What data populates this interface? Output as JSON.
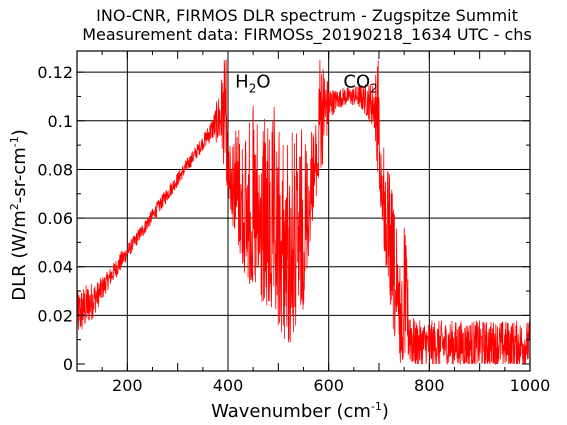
{
  "chart_data": {
    "type": "line",
    "title_line1": "INO-CNR, FIRMOS DLR spectrum - Zugspitze Summit",
    "title_line2": "Measurement data: FIRMOSs_20190218_1634 UTC - chs",
    "xlabel": "Wavenumber (cm",
    "xlabel_sup": "-1",
    "xlabel_tail": ")",
    "ylabel": "DLR (W/m",
    "ylabel_sup1": "2",
    "ylabel_mid": "-sr-cm",
    "ylabel_sup2": "-1",
    "ylabel_tail": ")",
    "xlim": [
      100,
      1000
    ],
    "ylim": [
      0,
      0.125
    ],
    "x_ticks": [
      200,
      400,
      600,
      800,
      1000
    ],
    "x_tick_labels": [
      "200",
      "400",
      "600",
      "800",
      "1000"
    ],
    "y_ticks": [
      0,
      0.02,
      0.04,
      0.06,
      0.08,
      0.1,
      0.12
    ],
    "y_tick_labels": [
      "0",
      "0.02",
      "0.04",
      "0.06",
      "0.08",
      "0.1",
      "0.12"
    ],
    "grid": true,
    "line_color": "#ff0000",
    "annotations": [
      {
        "text": "H",
        "sub": "2",
        "tail": "O",
        "x": 450,
        "y": 0.1195
      },
      {
        "text": "CO",
        "sub": "2",
        "tail": "",
        "x": 665,
        "y": 0.1195
      }
    ],
    "series": [
      {
        "x": [
          100,
          110,
          120,
          130,
          140,
          150,
          160,
          170,
          180,
          190,
          200,
          210,
          220,
          230,
          240,
          250,
          260,
          270,
          280,
          290,
          300,
          310,
          320,
          330,
          340,
          350,
          360,
          370,
          380,
          390,
          400,
          410,
          420,
          430,
          440,
          450,
          460,
          470,
          480,
          490,
          500,
          510,
          520,
          530,
          540,
          550,
          560,
          570,
          580,
          590,
          600,
          610,
          620,
          630,
          640,
          650,
          660,
          670,
          680,
          690,
          700,
          710,
          720,
          730,
          740,
          750,
          760,
          770,
          780,
          790,
          800,
          810,
          820,
          830,
          840,
          850,
          860,
          870,
          880,
          890,
          900,
          910,
          920,
          930,
          940,
          950,
          960,
          970,
          980,
          990,
          1000
        ],
        "y": [
          0.02,
          0.022,
          0.024,
          0.026,
          0.028,
          0.031,
          0.034,
          0.037,
          0.04,
          0.043,
          0.046,
          0.049,
          0.052,
          0.055,
          0.058,
          0.061,
          0.064,
          0.067,
          0.07,
          0.073,
          0.076,
          0.079,
          0.082,
          0.085,
          0.088,
          0.091,
          0.094,
          0.097,
          0.1,
          0.103,
          0.105,
          0.106,
          0.107,
          0.107,
          0.108,
          0.108,
          0.108,
          0.107,
          0.107,
          0.107,
          0.106,
          0.105,
          0.105,
          0.104,
          0.104,
          0.103,
          0.103,
          0.103,
          0.103,
          0.104,
          0.106,
          0.108,
          0.109,
          0.11,
          0.11,
          0.11,
          0.11,
          0.109,
          0.108,
          0.106,
          0.103,
          0.095,
          0.085,
          0.07,
          0.05,
          0.03,
          0.014,
          0.008,
          0.008,
          0.008,
          0.008,
          0.008,
          0.008,
          0.008,
          0.008,
          0.008,
          0.008,
          0.008,
          0.008,
          0.008,
          0.008,
          0.008,
          0.008,
          0.008,
          0.008,
          0.008,
          0.008,
          0.008,
          0.008,
          0.008,
          0.008
        ],
        "noise_amplitude": [
          0.01,
          0.01,
          0.009,
          0.008,
          0.006,
          0.005,
          0.004,
          0.004,
          0.004,
          0.004,
          0.003,
          0.003,
          0.003,
          0.003,
          0.003,
          0.003,
          0.003,
          0.003,
          0.003,
          0.003,
          0.003,
          0.003,
          0.003,
          0.003,
          0.003,
          0.003,
          0.004,
          0.005,
          0.01,
          0.02,
          0.035,
          0.05,
          0.06,
          0.07,
          0.075,
          0.08,
          0.085,
          0.085,
          0.09,
          0.09,
          0.095,
          0.095,
          0.1,
          0.095,
          0.09,
          0.08,
          0.06,
          0.04,
          0.03,
          0.02,
          0.01,
          0.005,
          0.004,
          0.004,
          0.004,
          0.004,
          0.005,
          0.006,
          0.008,
          0.01,
          0.03,
          0.05,
          0.06,
          0.06,
          0.05,
          0.03,
          0.015,
          0.01,
          0.01,
          0.01,
          0.01,
          0.01,
          0.01,
          0.01,
          0.01,
          0.01,
          0.01,
          0.01,
          0.01,
          0.01,
          0.01,
          0.01,
          0.01,
          0.01,
          0.01,
          0.01,
          0.01,
          0.01,
          0.01,
          0.01,
          0.01
        ]
      }
    ]
  }
}
